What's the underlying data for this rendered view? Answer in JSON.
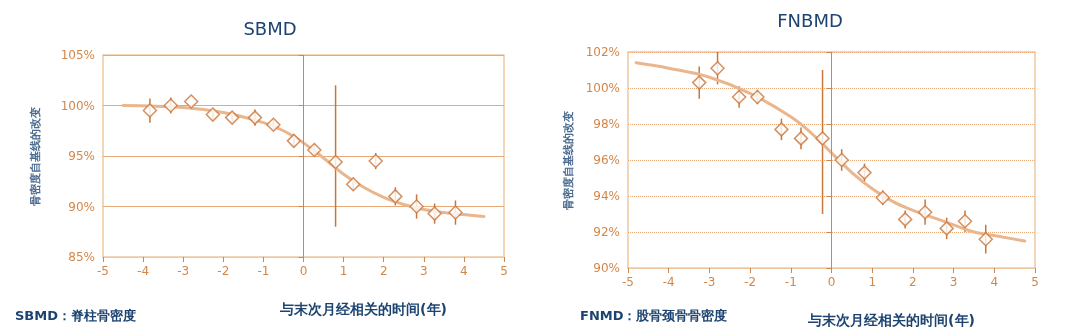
{
  "chart_data": [
    {
      "type": "scatter",
      "title": "SBMD",
      "xlabel": "与末次月经相关的时间(年)",
      "ylabel": "骨密度自基线的改变",
      "annotations": [
        "SBMD：脊柱骨密度"
      ],
      "xlim": [
        -5,
        5
      ],
      "xticks": [
        -5,
        -4,
        -3,
        -2,
        -1,
        0,
        1,
        2,
        3,
        4,
        5
      ],
      "ylim": [
        85,
        105
      ],
      "yticks": [
        {
          "value": 85,
          "label": "85%"
        },
        {
          "value": 90,
          "label": "90%"
        },
        {
          "value": 95,
          "label": "95%"
        },
        {
          "value": 100,
          "label": "100%"
        },
        {
          "value": 105,
          "label": "105%"
        }
      ],
      "grid": "y",
      "marker": "diamond",
      "ref_lines": [
        {
          "axis": "x",
          "value": 0,
          "label": null,
          "color": "#d2874a"
        }
      ],
      "series": [
        {
          "color": "#c9763a",
          "x": [
            -3.83,
            -3.31,
            -2.8,
            -2.26,
            -1.78,
            -1.21,
            -0.75,
            -0.24,
            0.27,
            0.8,
            1.24,
            1.8,
            2.29,
            2.82,
            3.27,
            3.79
          ],
          "values": [
            99.5,
            100.0,
            100.4,
            99.1,
            98.8,
            98.8,
            98.1,
            96.5,
            95.6,
            94.4,
            92.2,
            94.5,
            91.0,
            90.0,
            89.3,
            89.4
          ],
          "errors": [
            1.2,
            0.8,
            null,
            0.4,
            0.4,
            0.8,
            0.5,
            0.6,
            0.6,
            [
              88,
              102
            ],
            0.6,
            0.8,
            0.9,
            1.2,
            1.0,
            1.2
          ]
        },
        {
          "type": "line",
          "color": "#eab68e",
          "marker": "none",
          "x": [
            -4.5,
            -3,
            -2,
            -1,
            -0.5,
            0,
            0.5,
            1,
            1.5,
            2,
            2.5,
            3,
            3.5,
            4,
            4.5
          ],
          "values": [
            100.0,
            99.8,
            99.3,
            98.3,
            97.5,
            96.3,
            94.8,
            93.2,
            91.9,
            90.9,
            90.2,
            89.7,
            89.4,
            89.2,
            89.0
          ]
        }
      ]
    },
    {
      "type": "scatter",
      "title": "FNBMD",
      "xlabel": "与末次月经相关的时间(年)",
      "ylabel": "骨密度自基线的改变",
      "annotations": [
        "FNMD：股骨颈骨骨密度"
      ],
      "xlim": [
        -5,
        5
      ],
      "xticks": [
        -5,
        -4,
        -3,
        -2,
        -1,
        0,
        1,
        2,
        3,
        4,
        5
      ],
      "ylim": [
        90,
        102
      ],
      "yticks": [
        {
          "value": 90,
          "label": "90%"
        },
        {
          "value": 92,
          "label": "92%"
        },
        {
          "value": 94,
          "label": "94%"
        },
        {
          "value": 96,
          "label": "96%"
        },
        {
          "value": 98,
          "label": "98%"
        },
        {
          "value": 100,
          "label": "100%"
        },
        {
          "value": 102,
          "label": "102%"
        }
      ],
      "grid": "y",
      "marker": "diamond",
      "ref_lines": [
        {
          "axis": "x",
          "value": 0,
          "label": null,
          "color": "#d2874a"
        }
      ],
      "series": [
        {
          "color": "#c9763a",
          "x": [
            -3.25,
            -2.8,
            -2.27,
            -1.82,
            -1.23,
            -0.75,
            -0.22,
            0.25,
            0.81,
            1.26,
            1.81,
            2.3,
            2.83,
            3.28,
            3.79
          ],
          "values": [
            100.3,
            101.1,
            99.5,
            99.5,
            97.7,
            97.2,
            97.2,
            96.0,
            95.3,
            93.9,
            92.7,
            93.1,
            92.2,
            92.6,
            91.6
          ],
          "errors": [
            0.9,
            0.9,
            0.6,
            0.4,
            0.6,
            0.6,
            [
              93,
              101
            ],
            0.6,
            0.5,
            0.4,
            0.5,
            0.7,
            0.6,
            0.6,
            0.8
          ]
        },
        {
          "type": "line",
          "color": "#eab68e",
          "marker": "none",
          "x": [
            -4.8,
            -4,
            -3,
            -2,
            -1,
            -0.5,
            0,
            0.5,
            1,
            1.5,
            2,
            2.5,
            3,
            3.5,
            4,
            4.75
          ],
          "values": [
            101.4,
            101.1,
            100.6,
            99.7,
            98.4,
            97.5,
            96.4,
            95.3,
            94.4,
            93.7,
            93.2,
            92.8,
            92.4,
            92.0,
            91.8,
            91.5
          ]
        }
      ]
    }
  ]
}
